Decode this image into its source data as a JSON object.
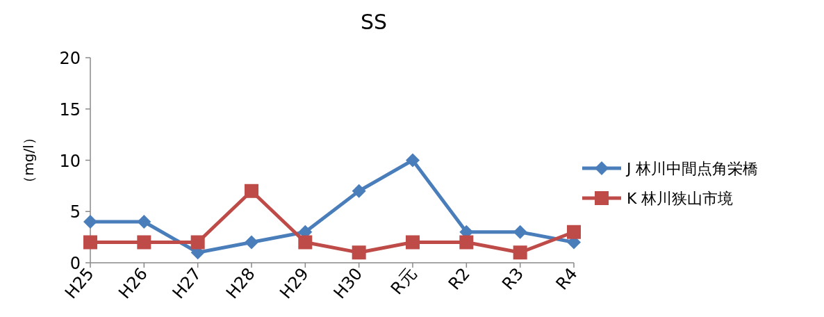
{
  "chart_data": {
    "type": "line",
    "title": "SS",
    "ylabel": "（mg/l）",
    "categories": [
      "H25",
      "H26",
      "H27",
      "H28",
      "H29",
      "H30",
      "R元",
      "R2",
      "R3",
      "R4"
    ],
    "series": [
      {
        "name": "J 林川中間点角栄橋",
        "color": "#4a7ebb",
        "marker": "diamond",
        "values": [
          4,
          4,
          1,
          2,
          3,
          7,
          10,
          3,
          3,
          2
        ]
      },
      {
        "name": "K 林川狭山市境",
        "color": "#be4b48",
        "marker": "square",
        "values": [
          2,
          2,
          2,
          7,
          2,
          1,
          2,
          2,
          1,
          3
        ]
      }
    ],
    "ylim": [
      0,
      20
    ],
    "yticks": [
      0,
      5,
      10,
      15,
      20
    ],
    "grid": false,
    "legend": "right",
    "line_style": "solid"
  }
}
